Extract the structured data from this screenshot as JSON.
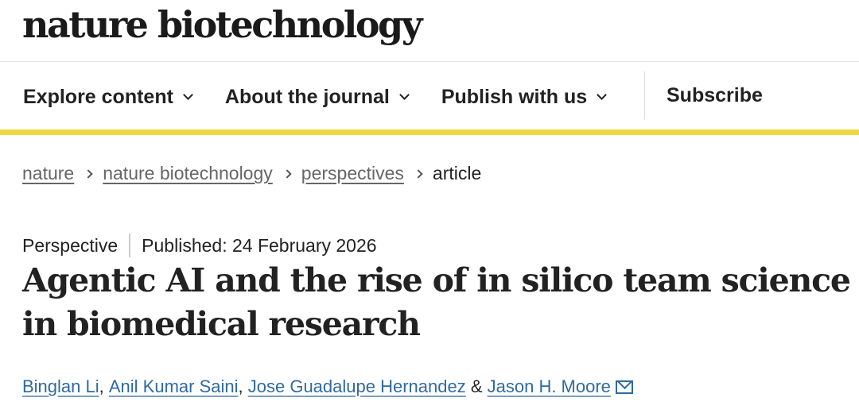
{
  "header": {
    "logo": "nature biotechnology"
  },
  "nav": {
    "items": [
      {
        "label": "Explore content"
      },
      {
        "label": "About the journal"
      },
      {
        "label": "Publish with us"
      }
    ],
    "subscribe": "Subscribe"
  },
  "breadcrumb": {
    "items": [
      "nature",
      "nature biotechnology",
      "perspectives"
    ],
    "current": "article"
  },
  "article": {
    "type": "Perspective",
    "published": "Published: 24 February 2026",
    "title": "Agentic AI and the rise of in silico team science in biomedical research",
    "authors": [
      "Binglan Li",
      "Anil Kumar Saini",
      "Jose Guadalupe Hernandez",
      "Jason H. Moore"
    ],
    "sep1": ", ",
    "sep2": ", ",
    "amp": " & "
  },
  "colors": {
    "accent": "#eed942",
    "link": "#2f6aa0"
  }
}
